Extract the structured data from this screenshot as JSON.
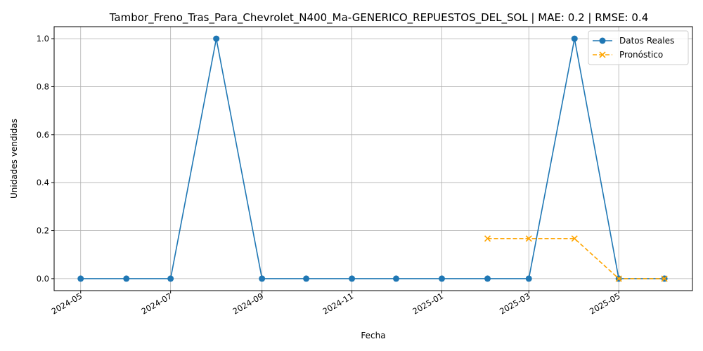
{
  "chart_data": {
    "type": "line",
    "title": "Tambor_Freno_Tras_Para_Chevrolet_N400_Ma-GENERICO_REPUESTOS_DEL_SOL | MAE: 0.2 | RMSE: 0.4",
    "xlabel": "Fecha",
    "ylabel": "Unidades vendidas",
    "x_ticks": [
      "2024-05",
      "2024-07",
      "2024-09",
      "2024-11",
      "2025-01",
      "2025-03",
      "2025-05"
    ],
    "y_ticks": [
      "0.0",
      "0.2",
      "0.4",
      "0.6",
      "0.8",
      "1.0"
    ],
    "xlim": [
      "2024-04-13",
      "2025-06-20"
    ],
    "ylim": [
      -0.05,
      1.05
    ],
    "grid": true,
    "legend_position": "top-right",
    "series": [
      {
        "name": "Datos Reales",
        "color": "#1f77b4",
        "line_style": "solid",
        "marker": "circle",
        "x": [
          "2024-05-01",
          "2024-06-01",
          "2024-07-01",
          "2024-08-01",
          "2024-09-01",
          "2024-10-01",
          "2024-11-01",
          "2024-12-01",
          "2025-01-01",
          "2025-02-01",
          "2025-03-01",
          "2025-04-01",
          "2025-05-01",
          "2025-06-01"
        ],
        "values": [
          0,
          0,
          0,
          1,
          0,
          0,
          0,
          0,
          0,
          0,
          0,
          1,
          0,
          0
        ]
      },
      {
        "name": "Pronóstico",
        "color": "#ffa500",
        "line_style": "dashed",
        "marker": "x",
        "x": [
          "2025-02-01",
          "2025-03-01",
          "2025-04-01",
          "2025-05-01",
          "2025-06-01"
        ],
        "values": [
          0.167,
          0.167,
          0.167,
          0,
          0
        ]
      }
    ]
  }
}
